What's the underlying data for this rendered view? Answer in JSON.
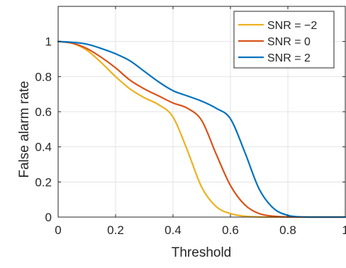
{
  "chart_data": {
    "type": "line",
    "title": "",
    "xlabel": "Threshold",
    "ylabel": "False alarm rate",
    "xlim": [
      0,
      1
    ],
    "ylim": [
      0,
      1.2
    ],
    "xticks": [
      0,
      0.2,
      0.4,
      0.6,
      0.8,
      1
    ],
    "xtick_labels": [
      "0",
      "0.2",
      "0.4",
      "0.6",
      "0.8",
      "1"
    ],
    "yticks": [
      0,
      0.2,
      0.4,
      0.6,
      0.8,
      1
    ],
    "ytick_labels": [
      "0",
      "0.2",
      "0.4",
      "0.6",
      "0.8",
      "1"
    ],
    "grid": true,
    "legend_position": "top-right",
    "x": [
      0,
      0.05,
      0.1,
      0.15,
      0.2,
      0.25,
      0.3,
      0.35,
      0.4,
      0.45,
      0.5,
      0.55,
      0.6,
      0.65,
      0.7,
      0.75,
      0.8,
      0.85,
      0.9,
      1.0
    ],
    "series": [
      {
        "name": "SNR = −2",
        "color": "#EDB120",
        "values": [
          1.0,
          0.99,
          0.95,
          0.88,
          0.8,
          0.73,
          0.68,
          0.64,
          0.57,
          0.38,
          0.17,
          0.06,
          0.02,
          0.005,
          0.001,
          0.0,
          0.0,
          0.0,
          0.0,
          0.0
        ]
      },
      {
        "name": "SNR = 0",
        "color": "#D95319",
        "values": [
          1.0,
          0.99,
          0.96,
          0.91,
          0.85,
          0.78,
          0.73,
          0.69,
          0.65,
          0.62,
          0.55,
          0.36,
          0.18,
          0.07,
          0.02,
          0.005,
          0.001,
          0.0,
          0.0,
          0.0
        ]
      },
      {
        "name": "SNR = 2",
        "color": "#0072BD",
        "values": [
          1.0,
          0.995,
          0.985,
          0.96,
          0.93,
          0.89,
          0.83,
          0.77,
          0.72,
          0.69,
          0.66,
          0.62,
          0.56,
          0.37,
          0.16,
          0.05,
          0.01,
          0.001,
          0.0,
          0.0
        ]
      }
    ]
  }
}
